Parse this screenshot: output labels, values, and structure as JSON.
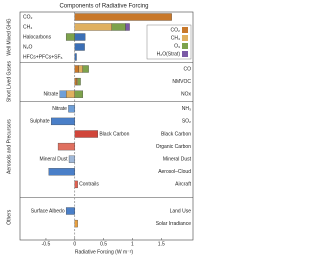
{
  "chart_data": {
    "type": "bar",
    "title": "Components of Radiative Forcing",
    "xlabel": "Radiative Forcing (W m⁻²)",
    "groups": [
      "Well Mixed GHG",
      "Short Lived Gases",
      "Aerosols and Precursors",
      "Others"
    ],
    "categories": [
      null,
      null,
      null,
      null,
      null,
      "CO",
      "NMVOC",
      "NOx",
      "NH₃",
      "SO₂",
      "Black Carbon",
      "Organic Carbon",
      "Mineral Dust",
      "Aerosol–Cloud",
      "Aircraft",
      "Land Use",
      "Solar Irradiance"
    ],
    "bar_labels": [
      "CO₂",
      "CH₄",
      "Halocarbons",
      "N₂O",
      "HFCs+PFCs+SF₆",
      null,
      null,
      "Nitrate",
      "Nitrate",
      "Sulphate",
      "Black Carbon",
      null,
      "Mineral Dust",
      null,
      "Contrails",
      "Surface Albedo",
      null
    ],
    "series": [
      {
        "name": "CO₂",
        "color": "#c8782a",
        "values": [
          1.68,
          null,
          null,
          null,
          null,
          0.07,
          0.03,
          null,
          null,
          null,
          null,
          null,
          null,
          null,
          null,
          null,
          null
        ]
      },
      {
        "name": "CH₄",
        "color": "#e0b060",
        "values": [
          null,
          0.64,
          null,
          null,
          null,
          0.07,
          0.02,
          -0.15,
          null,
          null,
          null,
          null,
          null,
          null,
          null,
          null,
          null
        ]
      },
      {
        "name": "O₃",
        "color": "#7da24c",
        "values": [
          null,
          0.24,
          -0.15,
          null,
          null,
          0.1,
          0.05,
          0.14,
          null,
          null,
          null,
          null,
          null,
          null,
          null,
          null,
          null
        ]
      },
      {
        "name": "H₂O(Strat)",
        "color": "#7b5aa6",
        "values": [
          null,
          0.07,
          null,
          null,
          null,
          null,
          null,
          null,
          null,
          null,
          null,
          null,
          null,
          null,
          null,
          null,
          null
        ]
      }
    ],
    "other_values": [
      null,
      null,
      0.18,
      0.17,
      0.03,
      null,
      null,
      -0.11,
      -0.11,
      -0.41,
      0.4,
      -0.29,
      -0.1,
      -0.45,
      0.05,
      -0.15,
      0.05
    ],
    "other_colors": [
      null,
      null,
      "#3b6fb6",
      "#3b6fb6",
      "#3b6fb6",
      null,
      null,
      "#6f9fd8",
      "#6f9fd8",
      "#4a7fc8",
      "#d0453a",
      "#e07060",
      "#a0b8d8",
      "#4a7fc8",
      "#e06050",
      "#4a7fc8",
      "#e8a040"
    ],
    "xlim": [
      -0.95,
      2.05
    ],
    "xticks": [
      -0.5,
      0,
      0.5,
      1,
      1.5
    ]
  }
}
